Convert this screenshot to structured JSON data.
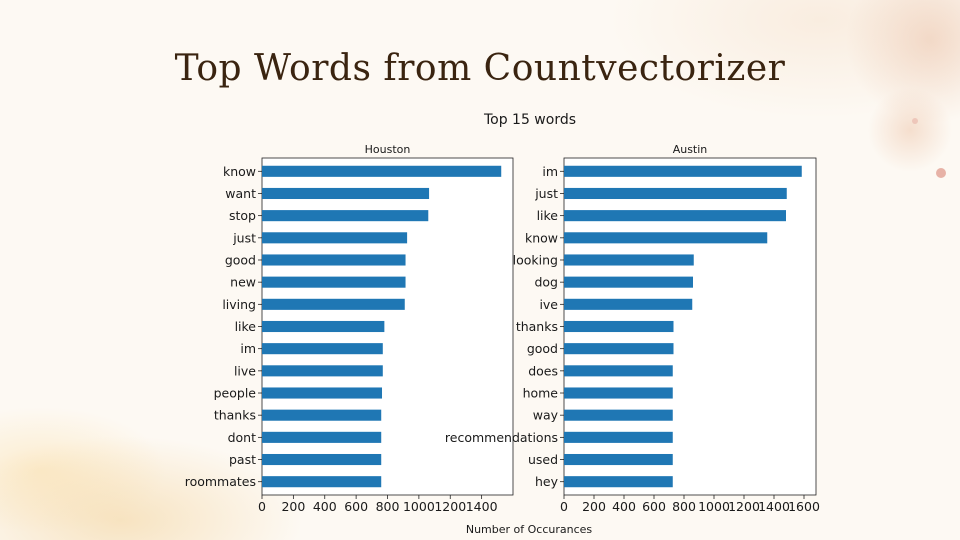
{
  "slide": {
    "title": "Top Words from Countvectorizer"
  },
  "chart_data": {
    "type": "bar",
    "orientation": "horizontal",
    "suptitle": "Top 15 words",
    "xlabel": "Number of Occurances",
    "bar_color": "#1f77b4",
    "panels": [
      {
        "title": "Houston",
        "categories": [
          "know",
          "want",
          "stop",
          "just",
          "good",
          "new",
          "living",
          "like",
          "im",
          "live",
          "people",
          "thanks",
          "dont",
          "past",
          "roommates"
        ],
        "values": [
          1525,
          1065,
          1060,
          925,
          915,
          915,
          910,
          780,
          770,
          770,
          765,
          760,
          760,
          760,
          760
        ],
        "xlim": [
          0,
          1600
        ],
        "xticks": [
          0,
          200,
          400,
          600,
          800,
          1000,
          1200,
          1400
        ]
      },
      {
        "title": "Austin",
        "categories": [
          "im",
          "just",
          "like",
          "know",
          "looking",
          "dog",
          "ive",
          "thanks",
          "good",
          "does",
          "home",
          "way",
          "recommendations",
          "used",
          "hey"
        ],
        "values": [
          1585,
          1485,
          1480,
          1355,
          865,
          860,
          855,
          730,
          730,
          725,
          725,
          725,
          725,
          725,
          725
        ],
        "xlim": [
          0,
          1680
        ],
        "xticks": [
          0,
          200,
          400,
          600,
          800,
          1000,
          1200,
          1400,
          1600
        ]
      }
    ]
  }
}
